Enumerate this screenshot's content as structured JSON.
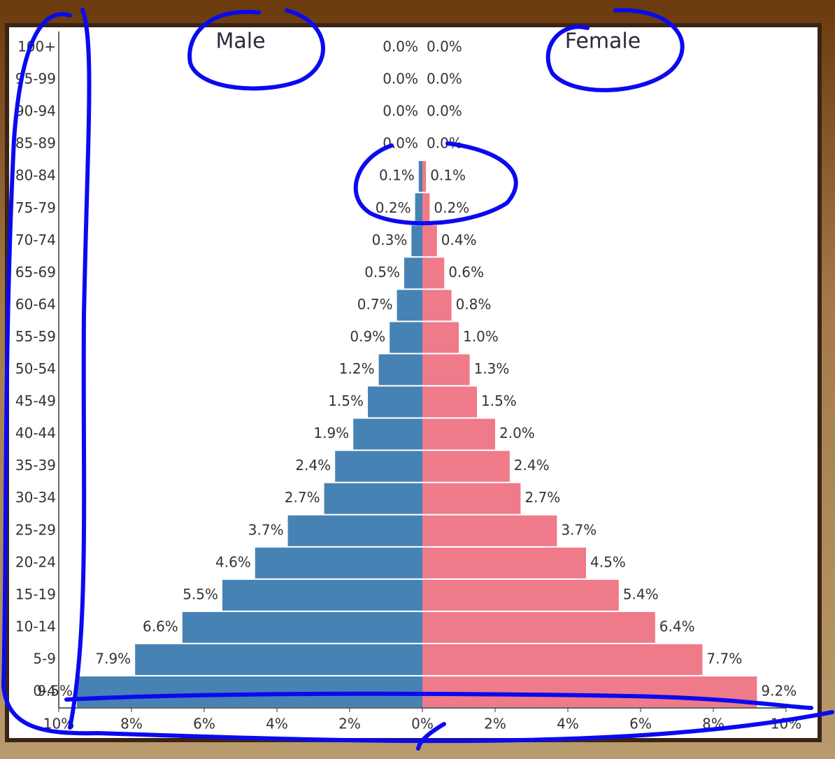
{
  "chart_data": {
    "type": "pyramid",
    "categories": [
      "0-4",
      "5-9",
      "10-14",
      "15-19",
      "20-24",
      "25-29",
      "30-34",
      "35-39",
      "40-44",
      "45-49",
      "50-54",
      "55-59",
      "60-64",
      "65-69",
      "70-74",
      "75-79",
      "80-84",
      "85-89",
      "90-94",
      "95-99",
      "100+"
    ],
    "series": [
      {
        "name": "Male",
        "color": "#4682b4",
        "values": [
          9.5,
          7.9,
          6.6,
          5.5,
          4.6,
          3.7,
          2.7,
          2.4,
          1.9,
          1.5,
          1.2,
          0.9,
          0.7,
          0.5,
          0.3,
          0.2,
          0.1,
          0.0,
          0.0,
          0.0,
          0.0
        ],
        "value_labels": [
          "9.5%",
          "7.9%",
          "6.6%",
          "5.5%",
          "4.6%",
          "3.7%",
          "2.7%",
          "2.4%",
          "1.9%",
          "1.5%",
          "1.2%",
          "0.9%",
          "0.7%",
          "0.5%",
          "0.3%",
          "0.2%",
          "0.1%",
          "0.0%",
          "0.0%",
          "0.0%",
          "0.0%"
        ]
      },
      {
        "name": "Female",
        "color": "#ef7a89",
        "values": [
          9.2,
          7.7,
          6.4,
          5.4,
          4.5,
          3.7,
          2.7,
          2.4,
          2.0,
          1.5,
          1.3,
          1.0,
          0.8,
          0.6,
          0.4,
          0.2,
          0.1,
          0.0,
          0.0,
          0.0,
          0.0
        ],
        "value_labels": [
          "9.2%",
          "7.7%",
          "6.4%",
          "5.4%",
          "4.5%",
          "3.7%",
          "2.7%",
          "2.4%",
          "2.0%",
          "1.5%",
          "1.3%",
          "1.0%",
          "0.8%",
          "0.6%",
          "0.4%",
          "0.2%",
          "0.1%",
          "0.0%",
          "0.0%",
          "0.0%",
          "0.0%"
        ]
      }
    ],
    "xlim": [
      -10,
      10
    ],
    "xticks": [
      {
        "value": -10,
        "label": "10%"
      },
      {
        "value": -8,
        "label": "8%"
      },
      {
        "value": -6,
        "label": "6%"
      },
      {
        "value": -4,
        "label": "4%"
      },
      {
        "value": -2,
        "label": "2%"
      },
      {
        "value": 0,
        "label": "0%"
      },
      {
        "value": 2,
        "label": "2%"
      },
      {
        "value": 4,
        "label": "4%"
      },
      {
        "value": 6,
        "label": "6%"
      },
      {
        "value": 8,
        "label": "8%"
      },
      {
        "value": 10,
        "label": "10%"
      }
    ]
  }
}
